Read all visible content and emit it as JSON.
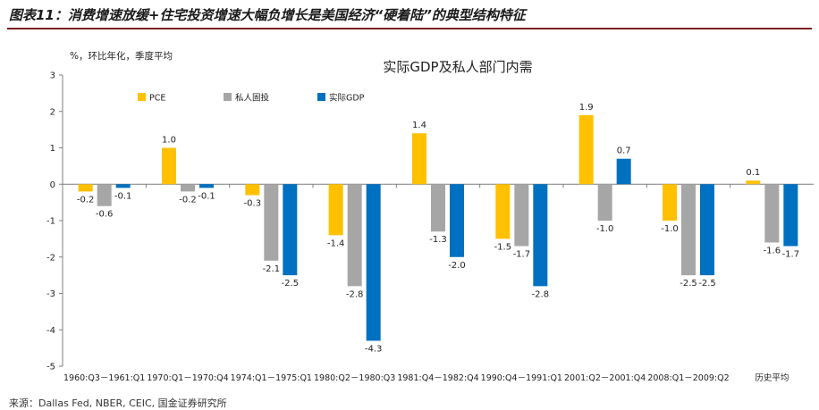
{
  "figure_title": "图表11：消费增速放缓+住宅投资增速大幅负增长是美国经济“硬着陆”的典型结构特征",
  "source_note": "来源：Dallas Fed, NBER, CEIC, 国金证券研究所",
  "colors": {
    "pce": "#FFC000",
    "residential": "#A6A6A6",
    "gdp": "#0070C0"
  },
  "chart_data": {
    "type": "bar",
    "title": "实际GDP及私人部门内需",
    "ylabel": "%，环比年化，季度平均",
    "xlabel": "",
    "ylim": [
      -5,
      3
    ],
    "yticks": [
      3,
      2,
      1,
      0,
      -1,
      -2,
      -3,
      -4,
      -5
    ],
    "legend_position": "top-left",
    "categories": [
      "1960:Q3－1961:Q1",
      "1970:Q1－1970:Q4",
      "1974:Q1－1975:Q1",
      "1980:Q2－1980:Q3",
      "1981:Q4－1982:Q4",
      "1990:Q4－1991:Q1",
      "2001:Q2－2001:Q4",
      "2008:Q1－2009:Q2",
      "历史平均"
    ],
    "series": [
      {
        "name": "PCE",
        "color_key": "pce",
        "values": [
          -0.2,
          1.0,
          -0.3,
          -1.4,
          1.4,
          -1.5,
          1.9,
          -1.0,
          0.1
        ],
        "labels": [
          "-0.2",
          "1.0",
          "-0.3",
          "-1.4",
          "1.4",
          "-1.5",
          "1.9",
          "-1.0",
          "0.1"
        ]
      },
      {
        "name": "私人固投",
        "color_key": "residential",
        "values": [
          -0.6,
          -0.2,
          -2.1,
          -2.8,
          -1.3,
          -1.7,
          -1.0,
          -2.5,
          -1.6
        ],
        "labels": [
          "-0.6",
          "-0.2",
          "-2.1",
          "-2.8",
          "-1.3",
          "-1.7",
          "-1.0",
          "-2.5",
          "-1.6"
        ]
      },
      {
        "name": "实际GDP",
        "color_key": "gdp",
        "values": [
          -0.1,
          -0.1,
          -2.5,
          -4.3,
          -2.0,
          -2.8,
          0.7,
          -2.5,
          -1.7
        ],
        "labels": [
          "-0.1",
          "-0.1",
          "-2.5",
          "-4.3",
          "-2.0",
          "-2.8",
          "0.7",
          "-2.5",
          "-1.7"
        ]
      }
    ]
  }
}
